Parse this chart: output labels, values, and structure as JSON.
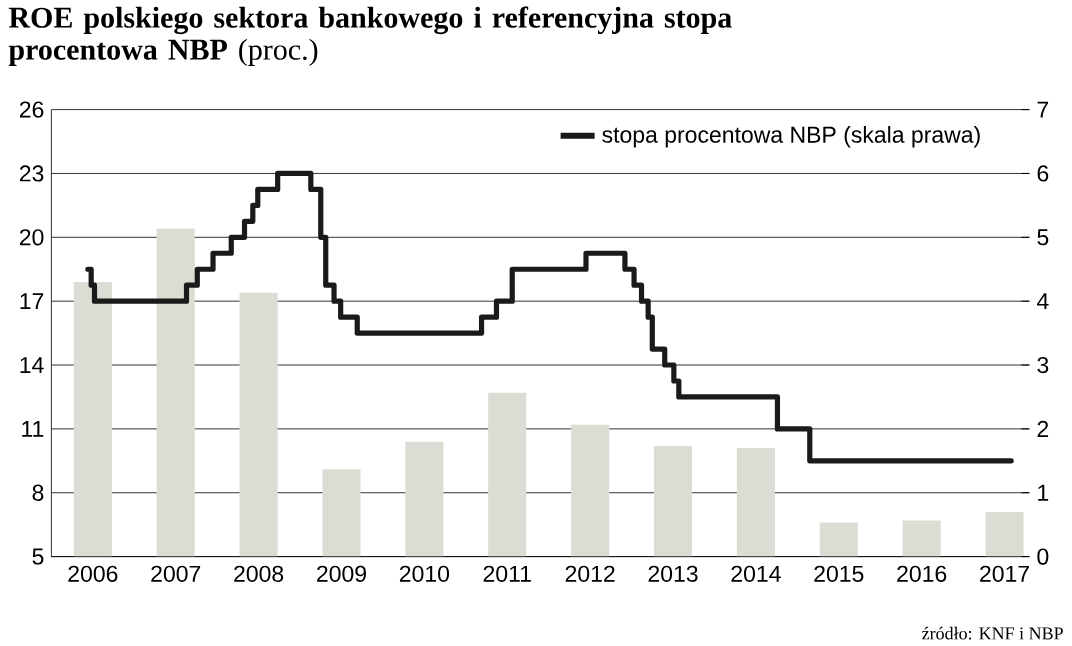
{
  "chart_data": {
    "type": "bar",
    "title": "**ROE polskiego sektora bankowego i referencyjna stopa procentowa NBP** (proc.)",
    "x": [
      2006,
      2007,
      2008,
      2009,
      2010,
      2011,
      2012,
      2013,
      2014,
      2015,
      2016,
      2017
    ],
    "xlim": [
      2005.5,
      2017.3
    ],
    "xticks": [
      2006,
      2007,
      2008,
      2009,
      2010,
      2011,
      2012,
      2013,
      2014,
      2015,
      2016,
      2017
    ],
    "ylim": [
      5,
      26
    ],
    "yticks": [
      5,
      8,
      11,
      14,
      17,
      20,
      23,
      26
    ],
    "y2lim": [
      0,
      7
    ],
    "y2ticks": [
      0,
      1,
      2,
      3,
      4,
      5,
      6,
      7
    ],
    "grid": "y",
    "legend": "top right",
    "annotations": [
      "źródło: KNF i NBP"
    ],
    "series": [
      {
        "color": "#dddcd4",
        "values": [
          17.9,
          20.4,
          17.4,
          9.1,
          10.4,
          12.7,
          11.2,
          10.2,
          10.1,
          6.6,
          6.7,
          7.1
        ]
      },
      {
        "type": "step",
        "name": "stopa procentowa NBP (skala prawa)",
        "color": "#1a1a1a",
        "axis": "y2",
        "x": [
          2005.94,
          2005.98,
          2006.02,
          2007.13,
          2007.26,
          2007.45,
          2007.67,
          2007.83,
          2007.93,
          2007.99,
          2008.23,
          2008.63,
          2008.75,
          2008.81,
          2008.91,
          2008.99,
          2009.19,
          2010.69,
          2010.87,
          2011.06,
          2011.95,
          2012.42,
          2012.53,
          2012.62,
          2012.7,
          2012.75,
          2012.9,
          2013.01,
          2013.07,
          2014.26,
          2014.65,
          2017.08
        ],
        "values": [
          4.5,
          4.25,
          4.0,
          4.25,
          4.5,
          4.75,
          5.0,
          5.25,
          5.5,
          5.75,
          6.0,
          5.75,
          5.0,
          4.25,
          4.0,
          3.75,
          3.5,
          3.75,
          4.0,
          4.5,
          4.75,
          4.5,
          4.25,
          4.0,
          3.75,
          3.25,
          3.0,
          2.75,
          2.5,
          2.0,
          1.5,
          1.5
        ]
      }
    ]
  }
}
